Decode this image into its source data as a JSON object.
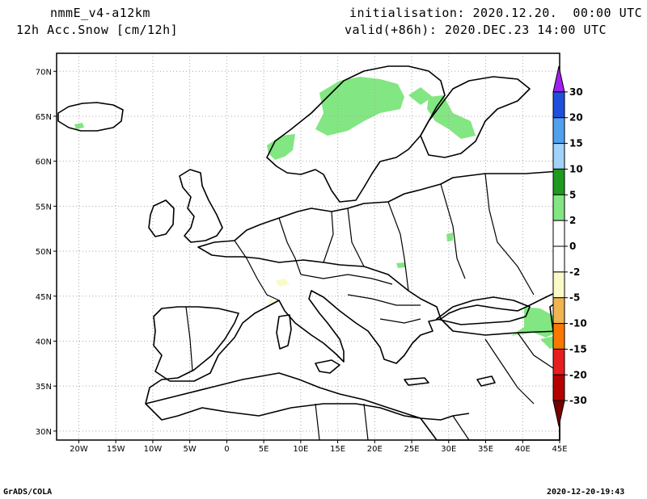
{
  "header": {
    "model": "nmmE_v4-a12km",
    "field": "12h Acc.Snow [cm/12h]",
    "init": "initialisation: 2020.12.20.  00:00 UTC",
    "valid": "valid(+86h): 2020.DEC.23 14:00 UTC"
  },
  "map": {
    "lon_range": [
      -23,
      45
    ],
    "lat_range": [
      29,
      72
    ],
    "lon_ticks": [
      "20W",
      "15W",
      "10W",
      "5W",
      "0",
      "5E",
      "10E",
      "15E",
      "20E",
      "25E",
      "30E",
      "35E",
      "40E",
      "45E"
    ],
    "lat_ticks": [
      "30N",
      "35N",
      "40N",
      "45N",
      "50N",
      "55N",
      "60N",
      "65N",
      "70N"
    ],
    "gridlines": true
  },
  "colorbar": {
    "levels": [
      "30",
      "20",
      "15",
      "10",
      "5",
      "2",
      "0",
      "-2",
      "-5",
      "-10",
      "-15",
      "-20",
      "-30"
    ],
    "colors": [
      "#a020f0",
      "#1e50dc",
      "#50a0f0",
      "#a0d2fa",
      "#1e9a1e",
      "#82e682",
      "#ffffff",
      "#ffffff",
      "#fafac8",
      "#f0b450",
      "#fa7800",
      "#e61e1e",
      "#b40000",
      "#780000"
    ]
  },
  "footer": {
    "credit": "GrADS/COLA",
    "timestamp": "2020-12-20-19:43"
  }
}
